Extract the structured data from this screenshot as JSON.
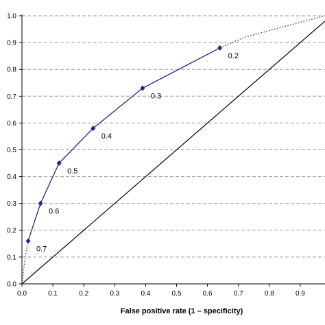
{
  "chart_data": {
    "type": "line",
    "title": "",
    "xlabel": "False positive rate (1 – specificity)",
    "ylabel": "",
    "xlim": [
      0,
      0.98
    ],
    "ylim": [
      0,
      1.0
    ],
    "xticks": [
      "0.0",
      "0.1",
      "0.2",
      "0.3",
      "0.4",
      "0.5",
      "0.6",
      "0.7",
      "0.8",
      "0.9"
    ],
    "yticks": [
      "0.0",
      "0.1",
      "0.2",
      "0.3",
      "0.4",
      "0.5",
      "0.6",
      "0.7",
      "0.8",
      "0.9",
      "1.0"
    ],
    "grid": "horizontal dashed",
    "series": [
      {
        "style": "solid-with-diamond-markers",
        "color": "#1f2b7a",
        "points": [
          {
            "x": 0.02,
            "y": 0.16,
            "label": "0.7"
          },
          {
            "x": 0.06,
            "y": 0.3,
            "label": "0.6"
          },
          {
            "x": 0.12,
            "y": 0.45,
            "label": "0.5"
          },
          {
            "x": 0.23,
            "y": 0.58,
            "label": "0.4"
          },
          {
            "x": 0.39,
            "y": 0.73,
            "label": "0.3"
          },
          {
            "x": 0.64,
            "y": 0.88,
            "label": "0.2"
          }
        ]
      },
      {
        "style": "dotted-extension",
        "color": "#1f2b7a",
        "points": [
          {
            "x": 0.0,
            "y": 0.0
          },
          {
            "x": 0.005,
            "y": 0.05
          },
          {
            "x": 0.012,
            "y": 0.11
          },
          {
            "x": 0.02,
            "y": 0.16
          }
        ]
      },
      {
        "style": "dotted-extension",
        "color": "#1f2b7a",
        "points": [
          {
            "x": 0.64,
            "y": 0.88
          },
          {
            "x": 0.72,
            "y": 0.92
          },
          {
            "x": 0.85,
            "y": 0.96
          },
          {
            "x": 0.98,
            "y": 1.0
          }
        ]
      },
      {
        "style": "diagonal-reference",
        "color": "#000000",
        "points": [
          {
            "x": 0.0,
            "y": 0.0
          },
          {
            "x": 0.98,
            "y": 0.98
          }
        ]
      }
    ]
  }
}
